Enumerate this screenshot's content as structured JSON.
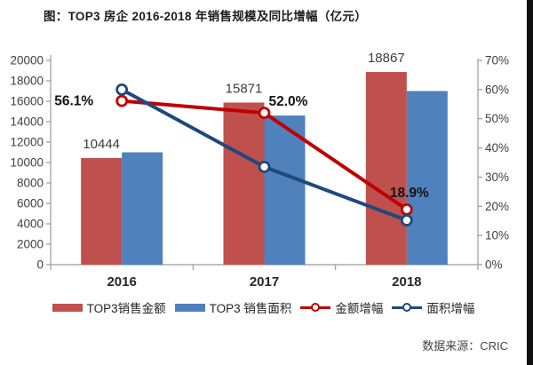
{
  "title": "图：TOP3 房企 2016-2018 年销售规模及同比增幅（亿元）",
  "source_note": "数据来源：CRIC",
  "chart_data": {
    "type": "combo-bar-line",
    "title": "图：TOP3 房企 2016-2018 年销售规模及同比增幅（亿元）",
    "categories": [
      "2016",
      "2017",
      "2018"
    ],
    "series": [
      {
        "name": "TOP3销售金额",
        "type": "bar",
        "axis": "left",
        "color": "#C0504D",
        "values": [
          10444,
          15871,
          18867
        ],
        "data_labels": [
          "10444",
          "15871",
          "18867"
        ]
      },
      {
        "name": "TOP3 销售面积",
        "type": "bar",
        "axis": "left",
        "color": "#4F81BD",
        "values": [
          11000,
          14600,
          17000
        ]
      },
      {
        "name": "金额增幅",
        "type": "line",
        "axis": "right",
        "color": "#C00000",
        "values": [
          56.1,
          52.0,
          18.9
        ],
        "data_labels": [
          "56.1%",
          "52.0%",
          "18.9%"
        ]
      },
      {
        "name": "面积增幅",
        "type": "line",
        "axis": "right",
        "color": "#1F497D",
        "values": [
          60.0,
          33.5,
          15.2
        ]
      }
    ],
    "left_axis": {
      "min": 0,
      "max": 20000,
      "step": 2000
    },
    "right_axis": {
      "min": 0,
      "max": 70,
      "step": 10,
      "suffix": "%"
    },
    "grid": false,
    "legend_position": "bottom",
    "axis_color": "#9b9b9b",
    "tick_label_color": "#414141",
    "value_label_color": "#3d3d3d",
    "pct_label_color": "#141414",
    "category_label_color": "#262626"
  }
}
